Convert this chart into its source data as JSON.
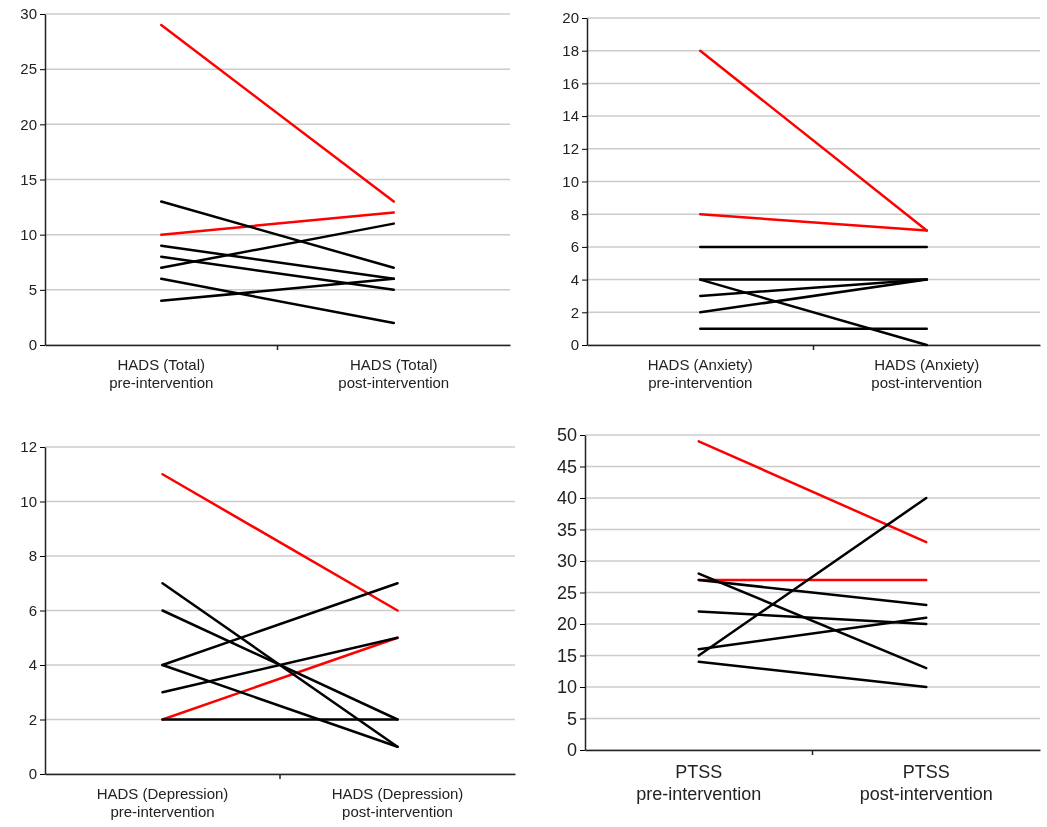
{
  "chart_data": [
    {
      "type": "line",
      "categories": [
        "HADS (Total)\npre-intervention",
        "HADS (Total)\npost-intervention"
      ],
      "ylim": [
        0,
        30
      ],
      "yticks": [
        0,
        5,
        10,
        15,
        20,
        25,
        30
      ],
      "grid": "y",
      "series": [
        {
          "color": "#ff0000",
          "values": [
            29,
            13
          ]
        },
        {
          "color": "#ff0000",
          "values": [
            10,
            12
          ]
        },
        {
          "color": "#000000",
          "values": [
            13,
            7
          ]
        },
        {
          "color": "#000000",
          "values": [
            9,
            6
          ]
        },
        {
          "color": "#000000",
          "values": [
            8,
            5
          ]
        },
        {
          "color": "#000000",
          "values": [
            7,
            11
          ]
        },
        {
          "color": "#000000",
          "values": [
            6,
            2
          ]
        },
        {
          "color": "#000000",
          "values": [
            4,
            6
          ]
        }
      ]
    },
    {
      "type": "line",
      "categories": [
        "HADS (Anxiety)\npre-intervention",
        "HADS (Anxiety)\npost-intervention"
      ],
      "ylim": [
        0,
        20
      ],
      "yticks": [
        0,
        2,
        4,
        6,
        8,
        10,
        12,
        14,
        16,
        18,
        20
      ],
      "grid": "y",
      "series": [
        {
          "color": "#ff0000",
          "values": [
            18,
            7
          ]
        },
        {
          "color": "#ff0000",
          "values": [
            8,
            7
          ]
        },
        {
          "color": "#000000",
          "values": [
            6,
            6
          ]
        },
        {
          "color": "#000000",
          "values": [
            4,
            4
          ]
        },
        {
          "color": "#000000",
          "values": [
            4,
            0
          ]
        },
        {
          "color": "#000000",
          "values": [
            3,
            4
          ]
        },
        {
          "color": "#000000",
          "values": [
            2,
            4
          ]
        },
        {
          "color": "#000000",
          "values": [
            1,
            1
          ]
        }
      ]
    },
    {
      "type": "line",
      "categories": [
        "HADS (Depression)\npre-intervention",
        "HADS (Depression)\npost-intervention"
      ],
      "ylim": [
        0,
        12
      ],
      "yticks": [
        0,
        2,
        4,
        6,
        8,
        10,
        12
      ],
      "grid": "y",
      "series": [
        {
          "color": "#ff0000",
          "values": [
            11,
            6
          ]
        },
        {
          "color": "#ff0000",
          "values": [
            2,
            5
          ]
        },
        {
          "color": "#000000",
          "values": [
            7,
            1
          ]
        },
        {
          "color": "#000000",
          "values": [
            6,
            2
          ]
        },
        {
          "color": "#000000",
          "values": [
            4,
            7
          ]
        },
        {
          "color": "#000000",
          "values": [
            4,
            1
          ]
        },
        {
          "color": "#000000",
          "values": [
            3,
            5
          ]
        },
        {
          "color": "#000000",
          "values": [
            2,
            2
          ]
        }
      ]
    },
    {
      "type": "line",
      "categories": [
        "PTSS\npre-intervention",
        "PTSS\npost-intervention"
      ],
      "ylim": [
        0,
        50
      ],
      "yticks": [
        0,
        5,
        10,
        15,
        20,
        25,
        30,
        35,
        40,
        45,
        50
      ],
      "grid": "y",
      "series": [
        {
          "color": "#ff0000",
          "values": [
            49,
            33
          ]
        },
        {
          "color": "#ff0000",
          "values": [
            27,
            27
          ]
        },
        {
          "color": "#000000",
          "values": [
            28,
            13
          ]
        },
        {
          "color": "#000000",
          "values": [
            27,
            23
          ]
        },
        {
          "color": "#000000",
          "values": [
            22,
            20
          ]
        },
        {
          "color": "#000000",
          "values": [
            16,
            21
          ]
        },
        {
          "color": "#000000",
          "values": [
            15,
            40
          ]
        },
        {
          "color": "#000000",
          "values": [
            14,
            10
          ]
        }
      ]
    }
  ]
}
